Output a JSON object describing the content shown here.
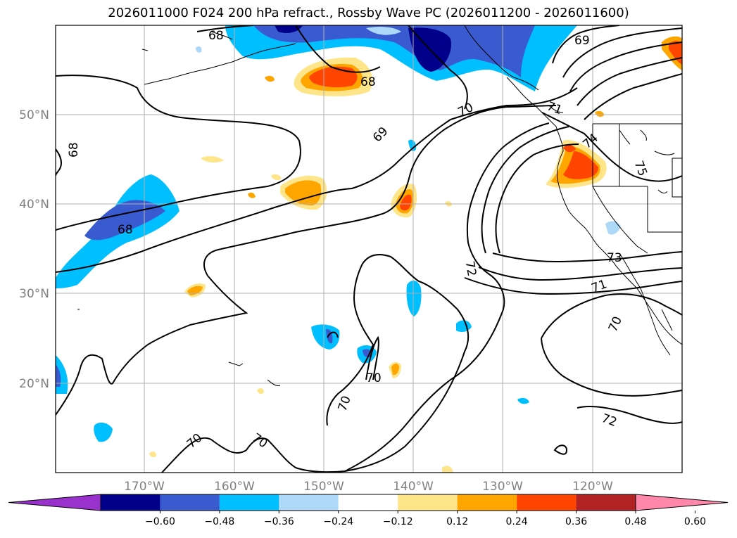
{
  "title": "2026011000 F024 200 hPa refract., Rossby Wave PC (2026011200 - 2026011600)",
  "map": {
    "lat_labels": [
      "50°N",
      "40°N",
      "30°N",
      "20°N"
    ],
    "lon_labels": [
      "170°W",
      "160°W",
      "150°W",
      "140°W",
      "130°W",
      "120°W"
    ],
    "contour_labels": [
      "68",
      "68",
      "68",
      "68",
      "69",
      "69",
      "70",
      "70",
      "70",
      "70",
      "70",
      "70",
      "71",
      "71",
      "72",
      "72",
      "73",
      "74",
      "75"
    ]
  },
  "colorbar": {
    "ticks": [
      "−0.60",
      "−0.48",
      "−0.36",
      "−0.24",
      "−0.12",
      "0.12",
      "0.24",
      "0.36",
      "0.48",
      "0.60"
    ],
    "colors": [
      "#9932cc",
      "#00008b",
      "#3a5bd0",
      "#00bfff",
      "#add8f7",
      "#ffffff",
      "#ffe58a",
      "#ffa500",
      "#ff4500",
      "#b22222",
      "#ff88aa"
    ]
  }
}
